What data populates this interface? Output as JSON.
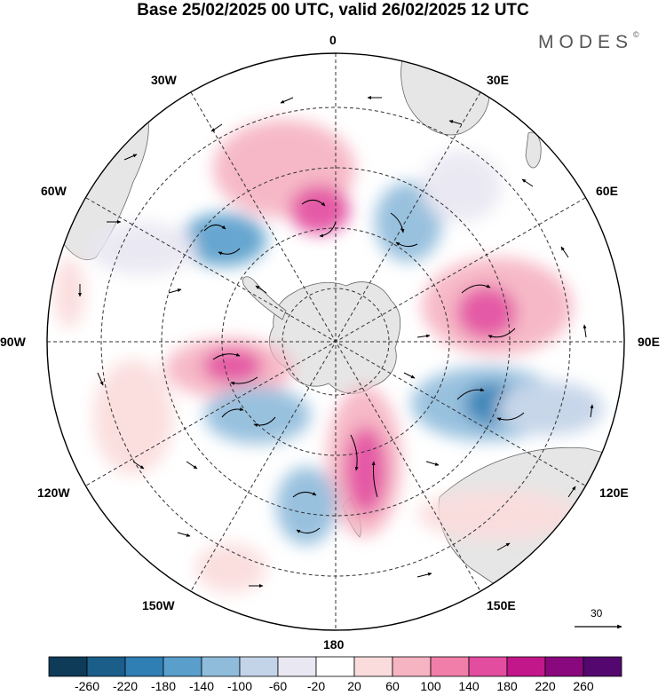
{
  "title": "Base 25/02/2025 00 UTC, valid 26/02/2025 12 UTC",
  "brand": "MODES",
  "brand_mark": "©",
  "longitude_labels": [
    "0",
    "30E",
    "60E",
    "90E",
    "120E",
    "150E",
    "180",
    "150W",
    "120W",
    "90W",
    "60W",
    "30W"
  ],
  "reference_vector_label": "30",
  "colorbar": {
    "ticks": [
      "-260",
      "-220",
      "-180",
      "-140",
      "-100",
      "-60",
      "-20",
      "20",
      "60",
      "100",
      "140",
      "180",
      "220",
      "260"
    ],
    "colors": [
      "#0d3b58",
      "#1b5e8a",
      "#2f7fb5",
      "#5a9fcc",
      "#90bcdc",
      "#c3d3e8",
      "#e9e7f2",
      "#ffffff",
      "#fbdcdc",
      "#f6b3c2",
      "#f07ea8",
      "#e34d9f",
      "#c2178a",
      "#8a087d",
      "#54076f"
    ]
  },
  "map": {
    "projection": "polar-stereographic",
    "hemisphere": "south",
    "features": [
      "coastlines",
      "graticule",
      "wind-vectors",
      "shaded-anomaly"
    ]
  }
}
